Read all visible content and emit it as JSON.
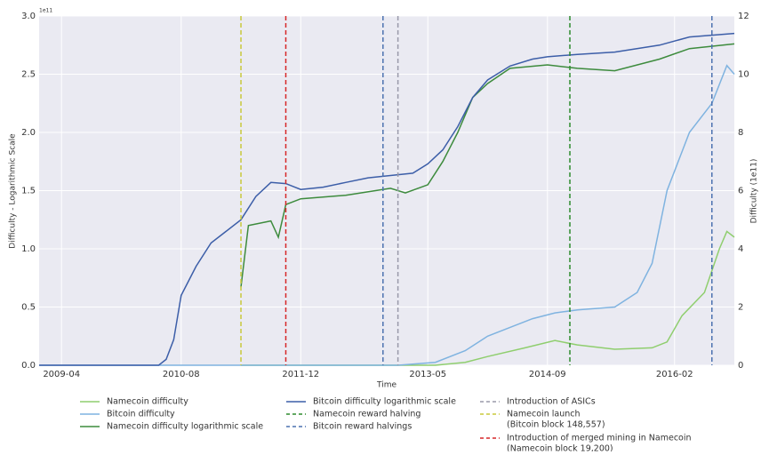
{
  "chart_data": {
    "type": "line",
    "x_label": "Time",
    "y_label": "Difficulty - Logarithmic Scale",
    "y2_label": "Difficulty (1e11)",
    "y_offset_label": "1e11",
    "xlim": [
      "2009-01",
      "2016-10"
    ],
    "xticks": [
      "2009-04",
      "2010-08",
      "2011-12",
      "2013-05",
      "2014-09",
      "2016-02"
    ],
    "ylim": [
      0,
      3
    ],
    "yticks": [
      {
        "value": 0,
        "label": "0.0"
      },
      {
        "value": 0.5,
        "label": "0.5"
      },
      {
        "value": 1,
        "label": "1.0"
      },
      {
        "value": 1.5,
        "label": "1.5"
      },
      {
        "value": 2,
        "label": "2.0"
      },
      {
        "value": 2.5,
        "label": "2.5"
      },
      {
        "value": 3,
        "label": "3.0"
      }
    ],
    "y2lim": [
      0,
      12
    ],
    "y2ticks": [
      0,
      2,
      4,
      6,
      8,
      10,
      12
    ],
    "grid": true,
    "series": [
      {
        "name": "Namecoin difficulty",
        "color": "#8fce6e",
        "axis": "y2",
        "x": [
          "2011-04",
          "2013-06",
          "2013-10",
          "2014-01",
          "2014-06",
          "2014-10",
          "2015-01",
          "2015-06",
          "2015-11",
          "2016-01",
          "2016-03",
          "2016-06",
          "2016-08",
          "2016-09",
          "2016-10"
        ],
        "values": [
          0,
          0,
          0.1,
          0.3,
          0.6,
          0.85,
          0.7,
          0.55,
          0.6,
          0.8,
          1.7,
          2.5,
          4.0,
          4.6,
          4.4
        ]
      },
      {
        "name": "Bitcoin difficulty",
        "color": "#7fb3e0",
        "axis": "y2",
        "x": [
          "2009-01",
          "2013-01",
          "2013-06",
          "2013-10",
          "2014-01",
          "2014-04",
          "2014-07",
          "2014-10",
          "2015-01",
          "2015-06",
          "2015-09",
          "2015-11",
          "2016-01",
          "2016-04",
          "2016-07",
          "2016-09",
          "2016-10"
        ],
        "values": [
          0,
          0,
          0.1,
          0.5,
          1.0,
          1.3,
          1.6,
          1.8,
          1.9,
          2.0,
          2.5,
          3.5,
          6.0,
          8.0,
          9.0,
          10.3,
          10.0
        ]
      },
      {
        "name": "Namecoin difficulty logarithmic scale",
        "color": "#3d8b3d",
        "axis": "y",
        "x": [
          "2011-04",
          "2011-05",
          "2011-08",
          "2011-09",
          "2011-10",
          "2011-12",
          "2012-06",
          "2012-12",
          "2013-02",
          "2013-05",
          "2013-07",
          "2013-09",
          "2013-11",
          "2014-01",
          "2014-04",
          "2014-09",
          "2015-01",
          "2015-06",
          "2015-12",
          "2016-04",
          "2016-10"
        ],
        "values": [
          0.67,
          1.2,
          1.24,
          1.1,
          1.38,
          1.43,
          1.46,
          1.52,
          1.48,
          1.55,
          1.75,
          2.0,
          2.3,
          2.42,
          2.55,
          2.58,
          2.55,
          2.53,
          2.63,
          2.72,
          2.76
        ]
      },
      {
        "name": "Bitcoin difficulty logarithmic scale",
        "color": "#3c5ea8",
        "axis": "y",
        "x": [
          "2009-01",
          "2010-05",
          "2010-06",
          "2010-07",
          "2010-08",
          "2010-10",
          "2010-12",
          "2011-02",
          "2011-04",
          "2011-06",
          "2011-08",
          "2011-10",
          "2011-12",
          "2012-03",
          "2012-06",
          "2012-09",
          "2012-12",
          "2013-03",
          "2013-05",
          "2013-07",
          "2013-09",
          "2013-11",
          "2014-01",
          "2014-04",
          "2014-07",
          "2014-09",
          "2015-01",
          "2015-06",
          "2015-12",
          "2016-04",
          "2016-10"
        ],
        "values": [
          0,
          0,
          0.05,
          0.22,
          0.6,
          0.85,
          1.05,
          1.15,
          1.25,
          1.45,
          1.57,
          1.56,
          1.51,
          1.53,
          1.57,
          1.61,
          1.63,
          1.65,
          1.73,
          1.85,
          2.05,
          2.3,
          2.45,
          2.57,
          2.63,
          2.65,
          2.67,
          2.69,
          2.75,
          2.82,
          2.85
        ]
      }
    ],
    "events": [
      {
        "name": "Namecoin reward halving",
        "color": "#2e8b2e",
        "x": [
          "2014-12"
        ]
      },
      {
        "name": "Bitcoin reward halvings",
        "color": "#4c72b0",
        "x": [
          "2012-11",
          "2016-07"
        ]
      },
      {
        "name": "Introduction of ASICs",
        "color": "#9a9aaa",
        "x": [
          "2013-01"
        ]
      },
      {
        "name": [
          "Namecoin launch",
          "(Bitcoin block 148,557)"
        ],
        "color": "#c8c83c",
        "x": [
          "2011-04"
        ]
      },
      {
        "name": [
          "Introduction of merged mining in Namecoin",
          "(Namecoin block 19,200)"
        ],
        "color": "#d62728",
        "x": [
          "2011-10"
        ]
      }
    ]
  }
}
